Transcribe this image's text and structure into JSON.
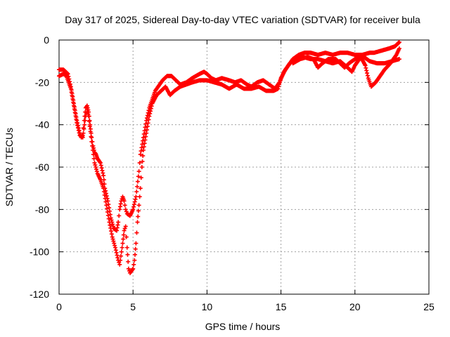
{
  "chart_data": {
    "type": "scatter",
    "title": "Day 317 of 2025, Sidereal Day-to-day VTEC variation (SDTVAR) for receiver bula",
    "xlabel": "GPS time / hours",
    "ylabel": "SDTVAR / TECUs",
    "xlim": [
      0,
      25
    ],
    "ylim": [
      -120,
      0
    ],
    "xticks": [
      0,
      5,
      10,
      15,
      20,
      25
    ],
    "yticks": [
      0,
      -20,
      -40,
      -60,
      -80,
      -100,
      -120
    ],
    "grid": true,
    "marker": "plus",
    "series": [
      {
        "name": "track-a",
        "color": "#ff0000",
        "points": [
          [
            0.0,
            -14
          ],
          [
            0.3,
            -14
          ],
          [
            0.6,
            -16
          ],
          [
            0.8,
            -22
          ],
          [
            1.0,
            -30
          ],
          [
            1.2,
            -38
          ],
          [
            1.4,
            -44
          ],
          [
            1.5,
            -46
          ],
          [
            1.6,
            -45
          ],
          [
            1.7,
            -38
          ],
          [
            1.8,
            -32
          ],
          [
            1.9,
            -31
          ],
          [
            2.0,
            -34
          ],
          [
            2.1,
            -40
          ],
          [
            2.2,
            -46
          ],
          [
            2.3,
            -50
          ],
          [
            2.4,
            -53
          ],
          [
            2.5,
            -54
          ],
          [
            2.6,
            -56
          ],
          [
            2.8,
            -58
          ],
          [
            3.0,
            -64
          ],
          [
            3.1,
            -70
          ],
          [
            3.3,
            -76
          ],
          [
            3.5,
            -84
          ],
          [
            3.7,
            -89
          ],
          [
            3.9,
            -90
          ],
          [
            4.0,
            -86
          ],
          [
            4.1,
            -80
          ],
          [
            4.2,
            -76
          ],
          [
            4.3,
            -74
          ],
          [
            4.4,
            -76
          ],
          [
            4.5,
            -80
          ],
          [
            4.6,
            -82
          ],
          [
            4.8,
            -83
          ],
          [
            5.0,
            -80
          ],
          [
            5.2,
            -74
          ],
          [
            5.4,
            -62
          ],
          [
            5.5,
            -54
          ],
          [
            5.7,
            -46
          ],
          [
            5.9,
            -38
          ],
          [
            6.1,
            -32
          ],
          [
            6.3,
            -28
          ],
          [
            6.5,
            -24
          ],
          [
            6.8,
            -21
          ],
          [
            7.0,
            -19
          ],
          [
            7.3,
            -17
          ],
          [
            7.6,
            -17
          ],
          [
            7.9,
            -19
          ],
          [
            8.2,
            -21
          ],
          [
            8.6,
            -20
          ],
          [
            9.0,
            -18
          ],
          [
            9.5,
            -16
          ],
          [
            9.8,
            -15
          ],
          [
            10.0,
            -16
          ],
          [
            10.3,
            -18
          ],
          [
            10.6,
            -19
          ],
          [
            11.0,
            -18
          ],
          [
            11.5,
            -19
          ],
          [
            11.9,
            -20
          ],
          [
            12.3,
            -19
          ],
          [
            12.7,
            -21
          ],
          [
            13.0,
            -22
          ],
          [
            13.4,
            -20
          ],
          [
            13.8,
            -19
          ],
          [
            14.2,
            -21
          ],
          [
            14.6,
            -23
          ],
          [
            14.9,
            -20
          ],
          [
            15.2,
            -15
          ],
          [
            15.5,
            -12
          ],
          [
            15.8,
            -9
          ],
          [
            16.2,
            -7
          ],
          [
            16.6,
            -6
          ],
          [
            17.0,
            -6
          ],
          [
            17.5,
            -7
          ],
          [
            18.0,
            -6
          ],
          [
            18.5,
            -7
          ],
          [
            19.0,
            -6
          ],
          [
            19.5,
            -6
          ],
          [
            20.0,
            -7
          ],
          [
            20.5,
            -7
          ],
          [
            21.0,
            -6
          ],
          [
            21.3,
            -6
          ],
          [
            21.8,
            -5
          ],
          [
            22.3,
            -4
          ],
          [
            22.7,
            -3
          ],
          [
            23.0,
            -1
          ]
        ]
      },
      {
        "name": "track-b",
        "color": "#ff0000",
        "points": [
          [
            0.0,
            -17
          ],
          [
            0.3,
            -16
          ],
          [
            0.5,
            -17
          ],
          [
            0.8,
            -23
          ],
          [
            1.0,
            -31
          ],
          [
            1.2,
            -39
          ],
          [
            1.4,
            -45
          ],
          [
            1.6,
            -46
          ],
          [
            1.8,
            -36
          ],
          [
            1.9,
            -33
          ],
          [
            2.0,
            -36
          ],
          [
            2.2,
            -48
          ],
          [
            2.4,
            -58
          ],
          [
            2.6,
            -63
          ],
          [
            2.8,
            -66
          ],
          [
            3.0,
            -70
          ],
          [
            3.2,
            -78
          ],
          [
            3.4,
            -86
          ],
          [
            3.6,
            -93
          ],
          [
            3.8,
            -98
          ],
          [
            4.0,
            -104
          ],
          [
            4.1,
            -106
          ],
          [
            4.3,
            -96
          ],
          [
            4.4,
            -90
          ],
          [
            4.5,
            -88
          ],
          [
            4.6,
            -98
          ],
          [
            4.7,
            -108
          ],
          [
            4.8,
            -110
          ],
          [
            5.0,
            -108
          ],
          [
            5.1,
            -104
          ],
          [
            5.2,
            -96
          ],
          [
            5.3,
            -86
          ],
          [
            5.4,
            -78
          ],
          [
            5.5,
            -70
          ],
          [
            5.6,
            -60
          ],
          [
            5.7,
            -52
          ],
          [
            5.9,
            -44
          ],
          [
            6.1,
            -36
          ],
          [
            6.3,
            -30
          ],
          [
            6.6,
            -26
          ],
          [
            6.9,
            -24
          ],
          [
            7.2,
            -22
          ],
          [
            7.5,
            -26
          ],
          [
            7.8,
            -24
          ],
          [
            8.2,
            -22
          ],
          [
            8.6,
            -21
          ],
          [
            9.0,
            -20
          ],
          [
            9.5,
            -19
          ],
          [
            10.0,
            -19
          ],
          [
            10.5,
            -20
          ],
          [
            11.0,
            -21
          ],
          [
            11.5,
            -23
          ],
          [
            12.0,
            -21
          ],
          [
            12.5,
            -23
          ],
          [
            13.0,
            -23
          ],
          [
            13.5,
            -22
          ],
          [
            14.0,
            -24
          ],
          [
            14.5,
            -24
          ],
          [
            14.8,
            -23
          ],
          [
            15.0,
            -18
          ],
          [
            15.3,
            -14
          ],
          [
            15.6,
            -11
          ],
          [
            16.0,
            -9
          ],
          [
            16.5,
            -8
          ],
          [
            17.0,
            -9
          ],
          [
            17.5,
            -9
          ],
          [
            18.0,
            -10
          ],
          [
            18.5,
            -11
          ],
          [
            19.0,
            -10
          ],
          [
            19.5,
            -13
          ],
          [
            19.8,
            -15
          ],
          [
            20.0,
            -12
          ],
          [
            20.3,
            -9
          ],
          [
            20.6,
            -8
          ],
          [
            21.0,
            -10
          ],
          [
            21.5,
            -11
          ],
          [
            22.0,
            -11
          ],
          [
            22.5,
            -10
          ],
          [
            23.0,
            -9
          ]
        ]
      },
      {
        "name": "track-c",
        "color": "#ff0000",
        "points": [
          [
            15.8,
            -11
          ],
          [
            16.3,
            -9
          ],
          [
            16.8,
            -8
          ],
          [
            17.2,
            -9
          ],
          [
            17.5,
            -13
          ],
          [
            17.8,
            -11
          ],
          [
            18.2,
            -9
          ],
          [
            18.7,
            -9
          ],
          [
            19.0,
            -11
          ],
          [
            19.3,
            -13
          ],
          [
            19.6,
            -11
          ],
          [
            20.0,
            -9
          ],
          [
            20.4,
            -8
          ],
          [
            20.7,
            -12
          ],
          [
            20.9,
            -18
          ],
          [
            21.1,
            -22
          ],
          [
            21.4,
            -20
          ],
          [
            21.7,
            -17
          ],
          [
            22.0,
            -14
          ],
          [
            22.4,
            -11
          ],
          [
            22.8,
            -7
          ],
          [
            23.0,
            -4
          ]
        ]
      }
    ]
  }
}
